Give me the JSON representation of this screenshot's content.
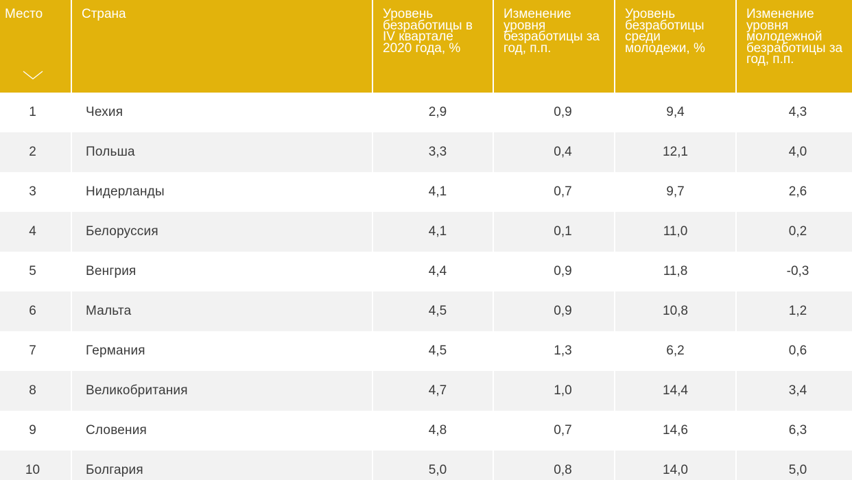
{
  "table": {
    "headers": [
      "Место",
      "Страна",
      "Уровень безработицы в IV квартале 2020 года, %",
      "Изменение уровня безработицы за год, п.п.",
      "Уровень безработицы среди молодежи, %",
      "Изменение уровня молодежной безработицы за год, п.п."
    ],
    "sort_icon": "chevron-down-icon",
    "rows": [
      [
        "1",
        "Чехия",
        "2,9",
        "0,9",
        "9,4",
        "4,3"
      ],
      [
        "2",
        "Польша",
        "3,3",
        "0,4",
        "12,1",
        "4,0"
      ],
      [
        "3",
        "Нидерланды",
        "4,1",
        "0,7",
        "9,7",
        "2,6"
      ],
      [
        "4",
        "Белоруссия",
        "4,1",
        "0,1",
        "11,0",
        "0,2"
      ],
      [
        "5",
        "Венгрия",
        "4,4",
        "0,9",
        "11,8",
        "-0,3"
      ],
      [
        "6",
        "Мальта",
        "4,5",
        "0,9",
        "10,8",
        "1,2"
      ],
      [
        "7",
        "Германия",
        "4,5",
        "1,3",
        "6,2",
        "0,6"
      ],
      [
        "8",
        "Великобритания",
        "4,7",
        "1,0",
        "14,4",
        "3,4"
      ],
      [
        "9",
        "Словения",
        "4,8",
        "0,7",
        "14,6",
        "6,3"
      ],
      [
        "10",
        "Болгария",
        "5,0",
        "0,8",
        "14,0",
        "5,0"
      ]
    ],
    "colors": {
      "header_bg": "#e2b30c",
      "header_text": "#ffffff",
      "row_alt_bg": "#f2f2f2",
      "body_text": "#3a3a3a"
    }
  }
}
